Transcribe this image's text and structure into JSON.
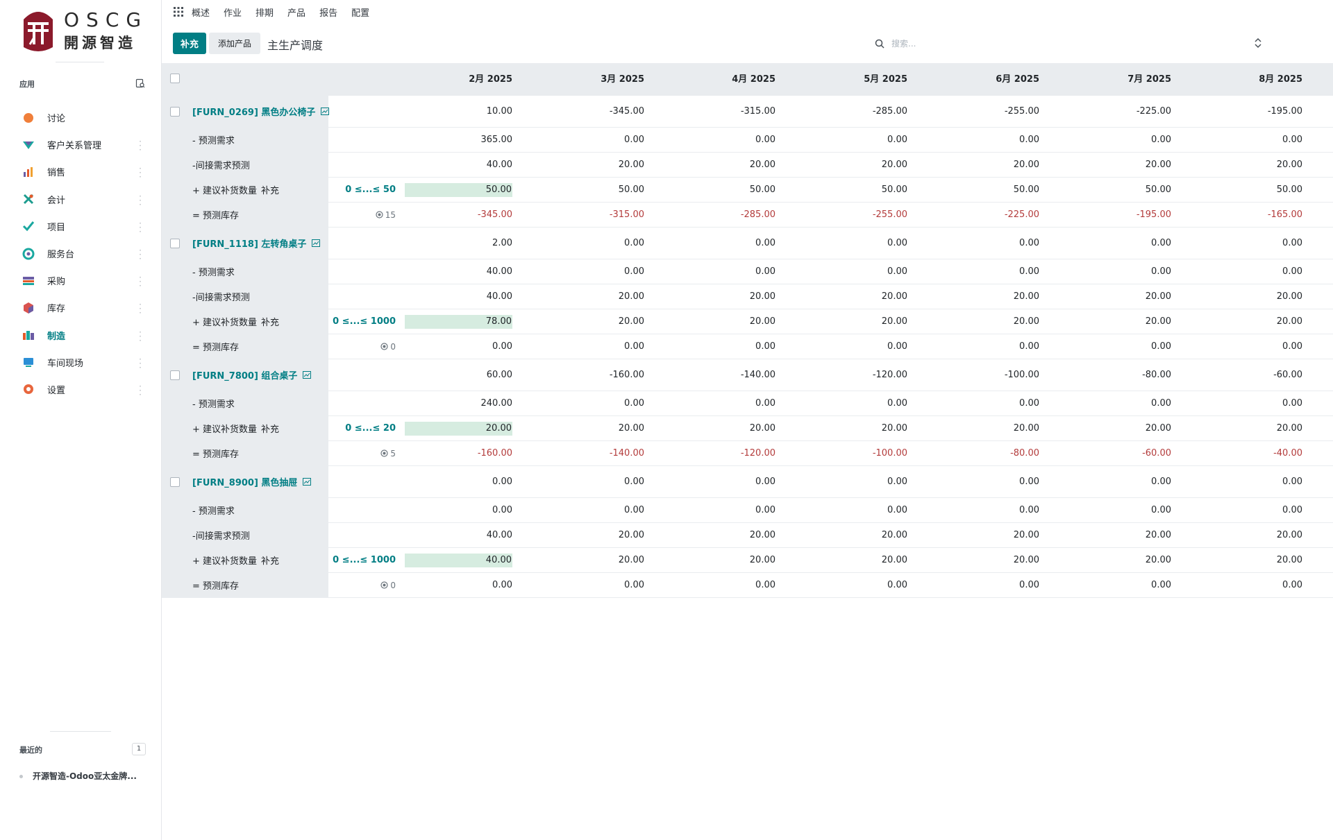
{
  "brand": {
    "name_en": "OSCG",
    "name_cn": "開源智造",
    "primary_color": "#017e84",
    "logo_color": "#8b1a2b"
  },
  "sidebar": {
    "apps_title": "应用",
    "apps": [
      {
        "label": "讨论",
        "icon": "discuss-icon",
        "color": "#f07f3a"
      },
      {
        "label": "客户关系管理",
        "icon": "crm-icon",
        "color": "#1aa8a0"
      },
      {
        "label": "销售",
        "icon": "sales-icon",
        "color": "#e45b2c"
      },
      {
        "label": "会计",
        "icon": "accounting-icon",
        "color": "#1c9c8f"
      },
      {
        "label": "项目",
        "icon": "project-icon",
        "color": "#1aa8a0"
      },
      {
        "label": "服务台",
        "icon": "helpdesk-icon",
        "color": "#1aa8a0"
      },
      {
        "label": "采购",
        "icon": "purchase-icon",
        "color": "#6b5ca5"
      },
      {
        "label": "库存",
        "icon": "inventory-icon",
        "color": "#d9534f"
      },
      {
        "label": "制造",
        "icon": "manufacturing-icon",
        "color": "#1aa8a0"
      },
      {
        "label": "车间现场",
        "icon": "shop-floor-icon",
        "color": "#2b8fd6"
      },
      {
        "label": "设置",
        "icon": "settings-icon",
        "color": "#e8663d"
      }
    ],
    "active_app": "制造",
    "recent_title": "最近的",
    "recent_count": "1",
    "recent_items": [
      "开源智造-Odoo亚太金牌..."
    ]
  },
  "topnav": {
    "menu": [
      "概述",
      "作业",
      "排期",
      "产品",
      "报告",
      "配置"
    ]
  },
  "controls": {
    "replenish_button": "补充",
    "add_product_button": "添加产品",
    "title": "主生产调度",
    "search_placeholder": "搜索..."
  },
  "columns": [
    "2月 2025",
    "3月 2025",
    "4月 2025",
    "5月 2025",
    "6月 2025",
    "7月 2025",
    "8月 2025"
  ],
  "products": [
    {
      "name": "[FURN_0269] 黑色办公椅子",
      "row_values": [
        "10.00",
        "-345.00",
        "-315.00",
        "-285.00",
        "-255.00",
        "-225.00",
        "-195.00"
      ],
      "lines": [
        {
          "label": "- 预测需求",
          "values": [
            "365.00",
            "0.00",
            "0.00",
            "0.00",
            "0.00",
            "0.00",
            "0.00"
          ]
        },
        {
          "label": "-间接需求预测",
          "values": [
            "40.00",
            "20.00",
            "20.00",
            "20.00",
            "20.00",
            "20.00",
            "20.00"
          ]
        },
        {
          "label": "+ 建议补货数量",
          "sub": "补充",
          "bounds": "0 ≤...≤ 50",
          "editable_first": true,
          "values": [
            "50.00",
            "50.00",
            "50.00",
            "50.00",
            "50.00",
            "50.00",
            "50.00"
          ]
        },
        {
          "label": "= 预测库存",
          "safety": "15",
          "negative": true,
          "values": [
            "-345.00",
            "-315.00",
            "-285.00",
            "-255.00",
            "-225.00",
            "-195.00",
            "-165.00"
          ]
        }
      ]
    },
    {
      "name": "[FURN_1118] 左转角桌子",
      "row_values": [
        "2.00",
        "0.00",
        "0.00",
        "0.00",
        "0.00",
        "0.00",
        "0.00"
      ],
      "lines": [
        {
          "label": "- 预测需求",
          "values": [
            "40.00",
            "0.00",
            "0.00",
            "0.00",
            "0.00",
            "0.00",
            "0.00"
          ]
        },
        {
          "label": "-间接需求预测",
          "values": [
            "40.00",
            "20.00",
            "20.00",
            "20.00",
            "20.00",
            "20.00",
            "20.00"
          ]
        },
        {
          "label": "+ 建议补货数量",
          "sub": "补充",
          "bounds": "0 ≤...≤ 1000",
          "editable_first": true,
          "values": [
            "78.00",
            "20.00",
            "20.00",
            "20.00",
            "20.00",
            "20.00",
            "20.00"
          ]
        },
        {
          "label": "= 预测库存",
          "safety": "0",
          "values": [
            "0.00",
            "0.00",
            "0.00",
            "0.00",
            "0.00",
            "0.00",
            "0.00"
          ]
        }
      ]
    },
    {
      "name": "[FURN_7800] 组合桌子",
      "row_values": [
        "60.00",
        "-160.00",
        "-140.00",
        "-120.00",
        "-100.00",
        "-80.00",
        "-60.00"
      ],
      "lines": [
        {
          "label": "- 预测需求",
          "values": [
            "240.00",
            "0.00",
            "0.00",
            "0.00",
            "0.00",
            "0.00",
            "0.00"
          ]
        },
        {
          "label": "+ 建议补货数量",
          "sub": "补充",
          "bounds": "0 ≤...≤ 20",
          "editable_first": true,
          "values": [
            "20.00",
            "20.00",
            "20.00",
            "20.00",
            "20.00",
            "20.00",
            "20.00"
          ]
        },
        {
          "label": "= 预测库存",
          "safety": "5",
          "negative": true,
          "values": [
            "-160.00",
            "-140.00",
            "-120.00",
            "-100.00",
            "-80.00",
            "-60.00",
            "-40.00"
          ]
        }
      ]
    },
    {
      "name": "[FURN_8900] 黑色抽屉",
      "row_values": [
        "0.00",
        "0.00",
        "0.00",
        "0.00",
        "0.00",
        "0.00",
        "0.00"
      ],
      "lines": [
        {
          "label": "- 预测需求",
          "values": [
            "0.00",
            "0.00",
            "0.00",
            "0.00",
            "0.00",
            "0.00",
            "0.00"
          ]
        },
        {
          "label": "-间接需求预测",
          "values": [
            "40.00",
            "20.00",
            "20.00",
            "20.00",
            "20.00",
            "20.00",
            "20.00"
          ]
        },
        {
          "label": "+ 建议补货数量",
          "sub": "补充",
          "bounds": "0 ≤...≤ 1000",
          "editable_first": true,
          "values": [
            "40.00",
            "20.00",
            "20.00",
            "20.00",
            "20.00",
            "20.00",
            "20.00"
          ]
        },
        {
          "label": "= 预测库存",
          "safety": "0",
          "values": [
            "0.00",
            "0.00",
            "0.00",
            "0.00",
            "0.00",
            "0.00",
            "0.00"
          ]
        }
      ]
    }
  ]
}
